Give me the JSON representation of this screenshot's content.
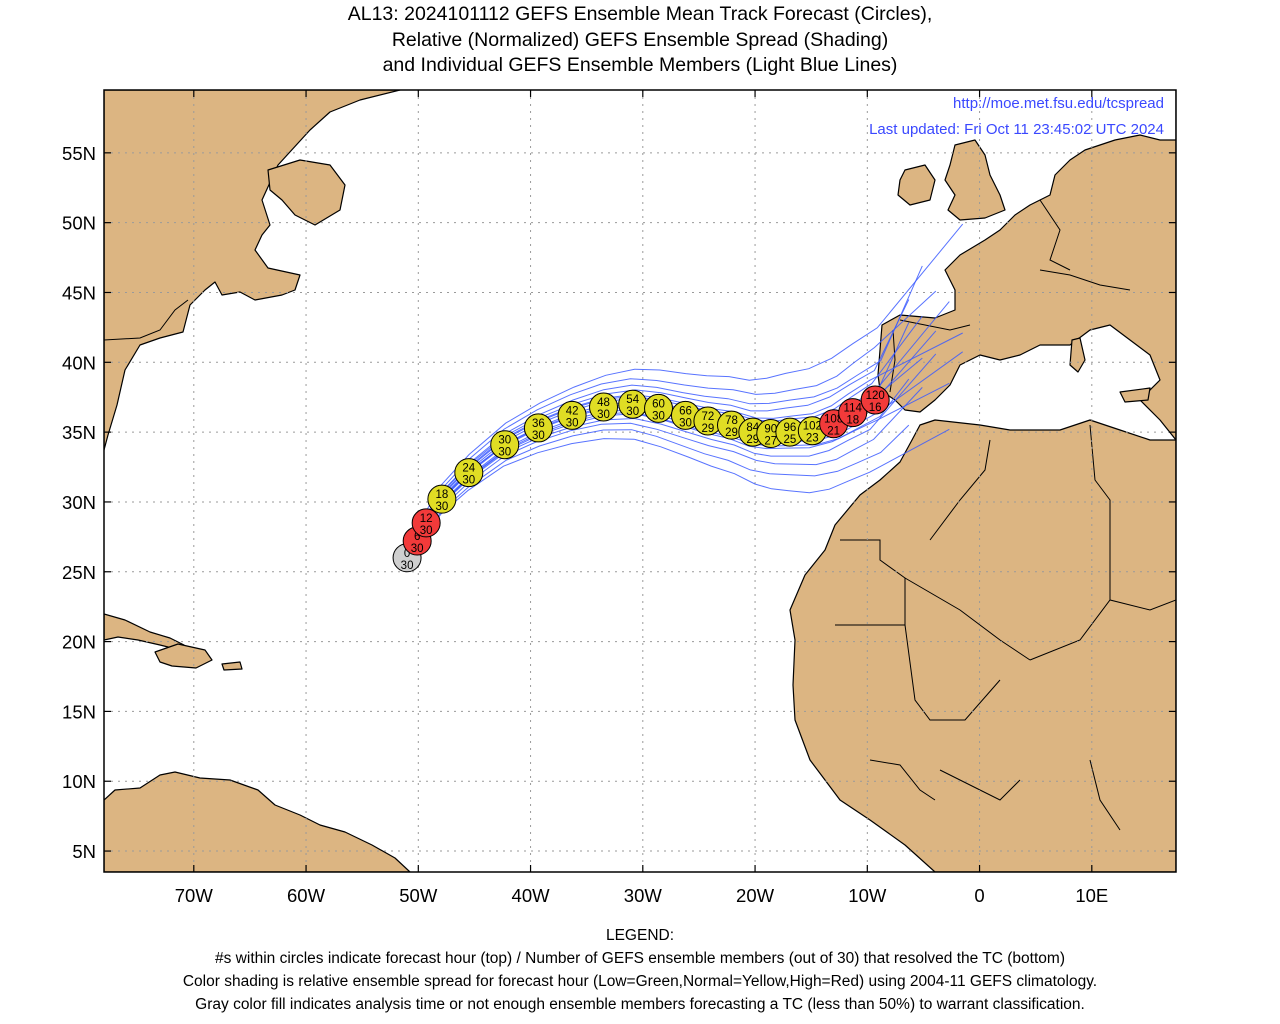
{
  "title": {
    "line1": "AL13: 2024101112 GEFS Ensemble Mean Track Forecast (Circles),",
    "line2": "Relative (Normalized) GEFS Ensemble Spread (Shading)",
    "line3": "and Individual GEFS Ensemble Members (Light Blue Lines)"
  },
  "credits": {
    "url": "http://moe.met.fsu.edu/tcspread",
    "updated": "Last updated: Fri Oct 11 23:45:02 UTC 2024"
  },
  "map": {
    "lon_range": [
      -78,
      17.5
    ],
    "lat_range": [
      3.5,
      59.5
    ],
    "lon_ticks": [
      {
        "value": -70,
        "label": "70W"
      },
      {
        "value": -60,
        "label": "60W"
      },
      {
        "value": -50,
        "label": "50W"
      },
      {
        "value": -40,
        "label": "40W"
      },
      {
        "value": -30,
        "label": "30W"
      },
      {
        "value": -20,
        "label": "20W"
      },
      {
        "value": -10,
        "label": "10W"
      },
      {
        "value": 0,
        "label": "0"
      },
      {
        "value": 10,
        "label": "10E"
      }
    ],
    "lat_ticks": [
      {
        "value": 55,
        "label": "55N"
      },
      {
        "value": 50,
        "label": "50N"
      },
      {
        "value": 45,
        "label": "45N"
      },
      {
        "value": 40,
        "label": "40N"
      },
      {
        "value": 35,
        "label": "35N"
      },
      {
        "value": 30,
        "label": "30N"
      },
      {
        "value": 25,
        "label": "25N"
      },
      {
        "value": 20,
        "label": "20N"
      },
      {
        "value": 15,
        "label": "15N"
      },
      {
        "value": 10,
        "label": "10N"
      },
      {
        "value": 5,
        "label": "5N"
      }
    ],
    "grid": "dotted",
    "colors": {
      "land": "#dcb582",
      "ocean": "#ffffff",
      "coast": "#000000",
      "member_track": "#3b5bff",
      "low_spread": "#22b14c",
      "normal_spread": "#e0dd24",
      "high_spread": "#f23a3a",
      "analysis": "#cfcfcf"
    }
  },
  "mean_track": [
    {
      "hour": "0",
      "members": "30",
      "lon": -51.0,
      "lat": 26.0,
      "spread": "gray"
    },
    {
      "hour": "6",
      "members": "30",
      "lon": -50.1,
      "lat": 27.2,
      "spread": "high"
    },
    {
      "hour": "12",
      "members": "30",
      "lon": -49.3,
      "lat": 28.5,
      "spread": "high"
    },
    {
      "hour": "18",
      "members": "30",
      "lon": -47.9,
      "lat": 30.2,
      "spread": "normal"
    },
    {
      "hour": "24",
      "members": "30",
      "lon": -45.5,
      "lat": 32.1,
      "spread": "normal"
    },
    {
      "hour": "30",
      "members": "30",
      "lon": -42.3,
      "lat": 34.1,
      "spread": "normal"
    },
    {
      "hour": "36",
      "members": "30",
      "lon": -39.3,
      "lat": 35.3,
      "spread": "normal"
    },
    {
      "hour": "42",
      "members": "30",
      "lon": -36.3,
      "lat": 36.2,
      "spread": "normal"
    },
    {
      "hour": "48",
      "members": "30",
      "lon": -33.5,
      "lat": 36.8,
      "spread": "normal"
    },
    {
      "hour": "54",
      "members": "30",
      "lon": -30.9,
      "lat": 37.0,
      "spread": "normal"
    },
    {
      "hour": "60",
      "members": "30",
      "lon": -28.6,
      "lat": 36.7,
      "spread": "normal"
    },
    {
      "hour": "66",
      "members": "30",
      "lon": -26.2,
      "lat": 36.2,
      "spread": "normal"
    },
    {
      "hour": "72",
      "members": "29",
      "lon": -24.2,
      "lat": 35.8,
      "spread": "normal"
    },
    {
      "hour": "78",
      "members": "29",
      "lon": -22.1,
      "lat": 35.5,
      "spread": "normal"
    },
    {
      "hour": "84",
      "members": "29",
      "lon": -20.2,
      "lat": 35.0,
      "spread": "normal"
    },
    {
      "hour": "90",
      "members": "27",
      "lon": -18.6,
      "lat": 34.9,
      "spread": "normal"
    },
    {
      "hour": "96",
      "members": "25",
      "lon": -16.9,
      "lat": 35.0,
      "spread": "normal"
    },
    {
      "hour": "102",
      "members": "23",
      "lon": -14.9,
      "lat": 35.1,
      "spread": "normal"
    },
    {
      "hour": "108",
      "members": "21",
      "lon": -13.0,
      "lat": 35.6,
      "spread": "high"
    },
    {
      "hour": "114",
      "members": "18",
      "lon": -11.3,
      "lat": 36.4,
      "spread": "high"
    },
    {
      "hour": "120",
      "members": "16",
      "lon": -9.3,
      "lat": 37.3,
      "spread": "high"
    }
  ],
  "legend": {
    "heading": "LEGEND:",
    "line1": "#s within circles indicate forecast hour (top) / Number of GEFS ensemble members (out of 30) that resolved the TC (bottom)",
    "line2": "Color shading is relative ensemble spread for forecast hour (Low=Green,Normal=Yellow,High=Red) using 2004-11 GEFS climatology.",
    "line3": "Gray color fill indicates analysis time or not enough ensemble members forecasting a TC (less than 50%) to warrant classification."
  }
}
